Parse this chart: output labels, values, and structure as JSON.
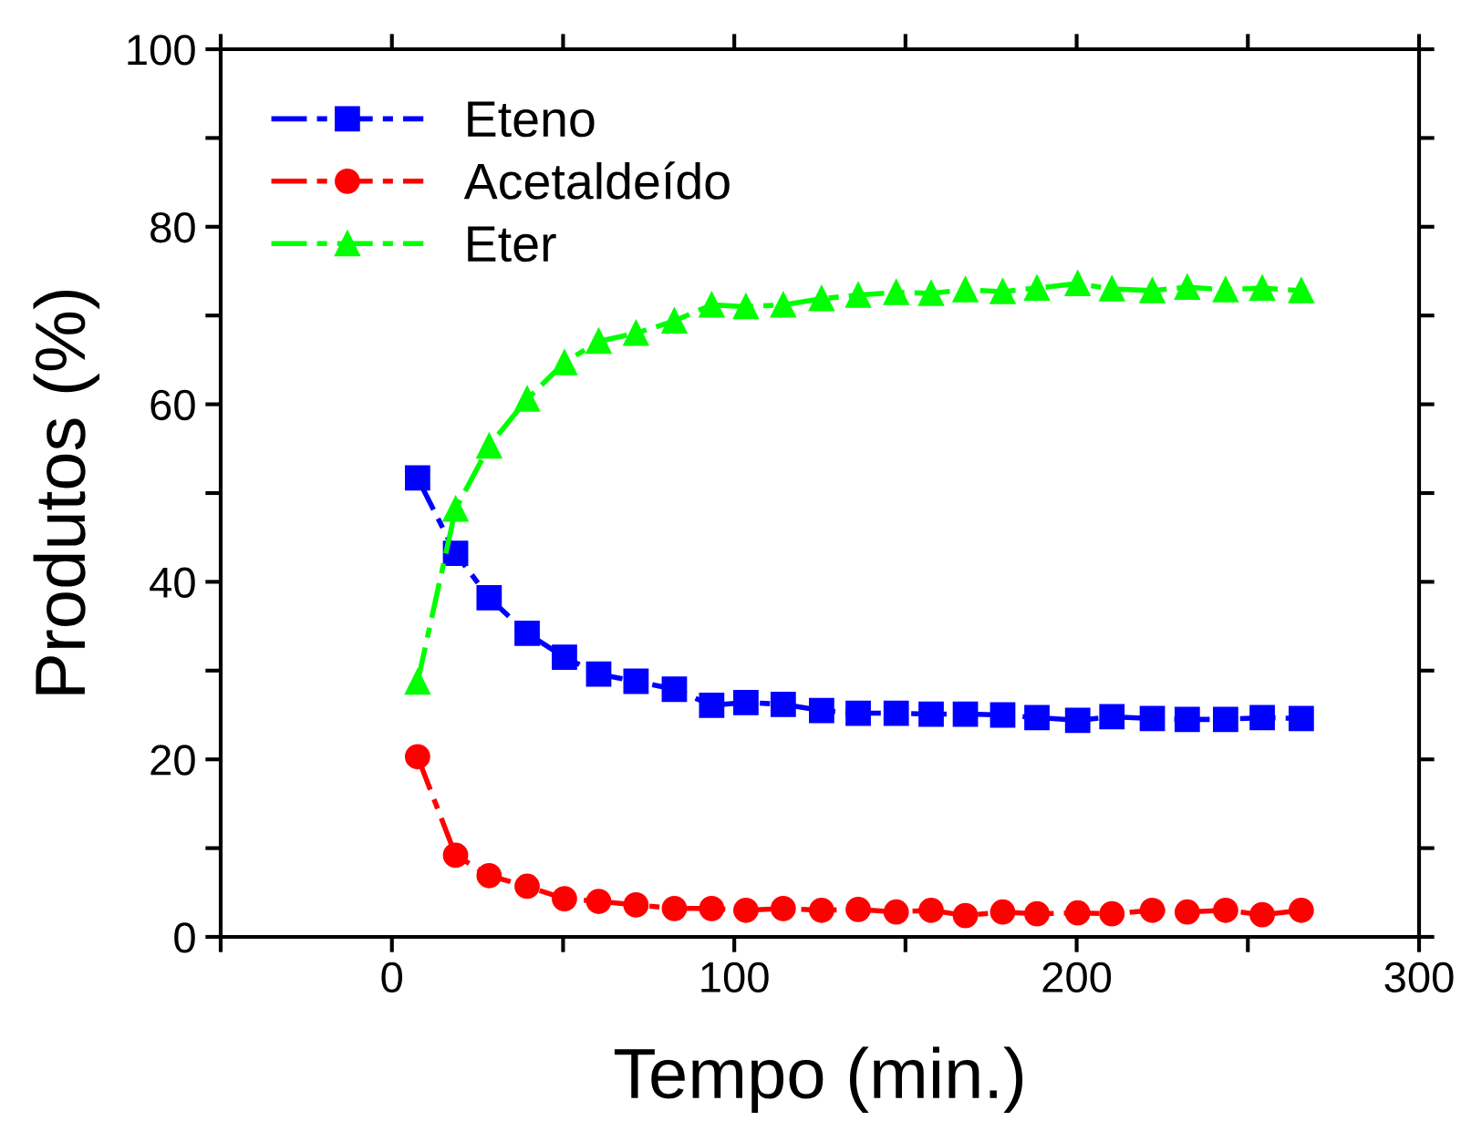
{
  "chart_data": {
    "type": "line",
    "xlabel": "Tempo (min.)",
    "ylabel": "Produtos (%)",
    "x": [
      7.5,
      18.6,
      28.4,
      39.5,
      50.4,
      60.4,
      71.3,
      82.5,
      93.4,
      103.4,
      114.3,
      125.5,
      136.2,
      147.3,
      157.5,
      167.5,
      178.4,
      188.4,
      200.3,
      210.3,
      222.1,
      232.3,
      243.5,
      254.2,
      265.6
    ],
    "series": [
      {
        "name": "Eteno",
        "color": "#0000ff",
        "marker": "square",
        "values": [
          51.7,
          43.2,
          38.2,
          34.2,
          31.5,
          29.6,
          28.8,
          27.9,
          26.1,
          26.4,
          26.2,
          25.5,
          25.2,
          25.2,
          25.1,
          25.1,
          25.0,
          24.7,
          24.4,
          24.8,
          24.6,
          24.5,
          24.5,
          24.7,
          24.6
        ]
      },
      {
        "name": "Acetaldeído",
        "color": "#ff0000",
        "marker": "circle",
        "values": [
          20.3,
          9.2,
          6.9,
          5.7,
          4.3,
          4.0,
          3.6,
          3.2,
          3.2,
          3.0,
          3.2,
          3.0,
          3.1,
          2.8,
          3.0,
          2.4,
          2.8,
          2.6,
          2.7,
          2.6,
          3.0,
          2.8,
          3.0,
          2.5,
          3.0
        ]
      },
      {
        "name": "Eter",
        "color": "#00ff00",
        "marker": "triangle",
        "values": [
          28.7,
          48.2,
          55.3,
          60.6,
          64.7,
          67.1,
          68.0,
          69.4,
          71.2,
          71.0,
          71.2,
          71.9,
          72.3,
          72.6,
          72.5,
          72.9,
          72.7,
          73.1,
          73.6,
          73.0,
          72.8,
          73.2,
          72.9,
          73.1,
          72.8
        ]
      }
    ],
    "xlim": [
      -50,
      300
    ],
    "xticks": [
      {
        "value": -50,
        "label": null
      },
      0,
      {
        "value": 50,
        "label": null
      },
      100,
      {
        "value": 150,
        "label": null
      },
      200,
      {
        "value": 250,
        "label": null
      },
      300
    ],
    "ylim": [
      0,
      100
    ],
    "yticks": [
      0,
      {
        "value": 10,
        "label": null
      },
      20,
      {
        "value": 30,
        "label": null
      },
      40,
      {
        "value": 50,
        "label": null
      },
      60,
      {
        "value": 70,
        "label": null
      },
      80,
      {
        "value": 90,
        "label": null
      },
      100
    ],
    "line_style": "dashed",
    "legend": "top left",
    "grid": false
  }
}
